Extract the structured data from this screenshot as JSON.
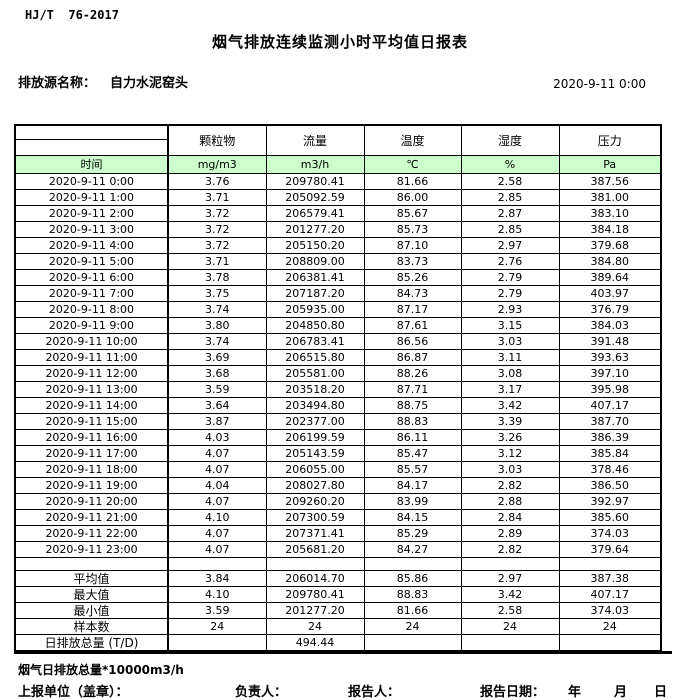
{
  "header": {
    "standard": "HJ/T  76-2017",
    "title": "烟气排放连续监测小时平均值日报表",
    "source_label": "排放源名称：",
    "source_name": "自力水泥窑头",
    "datetime": "2020-9-11 0:00"
  },
  "colors": {
    "header_green": "#ccffcc",
    "border": "#000000",
    "text": "#000000"
  },
  "table": {
    "time_header": "时间",
    "columns": [
      "颗粒物",
      "流量",
      "温度",
      "湿度",
      "压力"
    ],
    "units": [
      "mg/m3",
      "m3/h",
      "℃",
      "%",
      "Pa"
    ],
    "rows": [
      {
        "time": "2020-9-11 0:00",
        "values": [
          "3.76",
          "209780.41",
          "81.66",
          "2.58",
          "387.56"
        ]
      },
      {
        "time": "2020-9-11 1:00",
        "values": [
          "3.71",
          "205092.59",
          "86.00",
          "2.85",
          "381.00"
        ]
      },
      {
        "time": "2020-9-11 2:00",
        "values": [
          "3.72",
          "206579.41",
          "85.67",
          "2.87",
          "383.10"
        ]
      },
      {
        "time": "2020-9-11 3:00",
        "values": [
          "3.72",
          "201277.20",
          "85.73",
          "2.85",
          "384.18"
        ]
      },
      {
        "time": "2020-9-11 4:00",
        "values": [
          "3.72",
          "205150.20",
          "87.10",
          "2.97",
          "379.68"
        ]
      },
      {
        "time": "2020-9-11 5:00",
        "values": [
          "3.71",
          "208809.00",
          "83.73",
          "2.76",
          "384.80"
        ]
      },
      {
        "time": "2020-9-11 6:00",
        "values": [
          "3.78",
          "206381.41",
          "85.26",
          "2.79",
          "389.64"
        ]
      },
      {
        "time": "2020-9-11 7:00",
        "values": [
          "3.75",
          "207187.20",
          "84.73",
          "2.79",
          "403.97"
        ]
      },
      {
        "time": "2020-9-11 8:00",
        "values": [
          "3.74",
          "205935.00",
          "87.17",
          "2.93",
          "376.79"
        ]
      },
      {
        "time": "2020-9-11 9:00",
        "values": [
          "3.80",
          "204850.80",
          "87.61",
          "3.15",
          "384.03"
        ]
      },
      {
        "time": "2020-9-11 10:00",
        "values": [
          "3.74",
          "206783.41",
          "86.56",
          "3.03",
          "391.48"
        ]
      },
      {
        "time": "2020-9-11 11:00",
        "values": [
          "3.69",
          "206515.80",
          "86.87",
          "3.11",
          "393.63"
        ]
      },
      {
        "time": "2020-9-11 12:00",
        "values": [
          "3.68",
          "205581.00",
          "88.26",
          "3.08",
          "397.10"
        ]
      },
      {
        "time": "2020-9-11 13:00",
        "values": [
          "3.59",
          "203518.20",
          "87.71",
          "3.17",
          "395.98"
        ]
      },
      {
        "time": "2020-9-11 14:00",
        "values": [
          "3.64",
          "203494.80",
          "88.75",
          "3.42",
          "407.17"
        ]
      },
      {
        "time": "2020-9-11 15:00",
        "values": [
          "3.87",
          "202377.00",
          "88.83",
          "3.39",
          "387.70"
        ]
      },
      {
        "time": "2020-9-11 16:00",
        "values": [
          "4.03",
          "206199.59",
          "86.11",
          "3.26",
          "386.39"
        ]
      },
      {
        "time": "2020-9-11 17:00",
        "values": [
          "4.07",
          "205143.59",
          "85.47",
          "3.12",
          "385.84"
        ]
      },
      {
        "time": "2020-9-11 18:00",
        "values": [
          "4.07",
          "206055.00",
          "85.57",
          "3.03",
          "378.46"
        ]
      },
      {
        "time": "2020-9-11 19:00",
        "values": [
          "4.04",
          "208027.80",
          "84.17",
          "2.82",
          "386.50"
        ]
      },
      {
        "time": "2020-9-11 20:00",
        "values": [
          "4.07",
          "209260.20",
          "83.99",
          "2.88",
          "392.97"
        ]
      },
      {
        "time": "2020-9-11 21:00",
        "values": [
          "4.10",
          "207300.59",
          "84.15",
          "2.84",
          "385.60"
        ]
      },
      {
        "time": "2020-9-11 22:00",
        "values": [
          "4.07",
          "207371.41",
          "85.29",
          "2.89",
          "374.03"
        ]
      },
      {
        "time": "2020-9-11 23:00",
        "values": [
          "4.07",
          "205681.20",
          "84.27",
          "2.82",
          "379.64"
        ]
      }
    ],
    "summary": [
      {
        "label": "平均值",
        "values": [
          "3.84",
          "206014.70",
          "85.86",
          "2.97",
          "387.38"
        ]
      },
      {
        "label": "最大值",
        "values": [
          "4.10",
          "209780.41",
          "88.83",
          "3.42",
          "407.17"
        ]
      },
      {
        "label": "最小值",
        "values": [
          "3.59",
          "201277.20",
          "81.66",
          "2.58",
          "374.03"
        ]
      },
      {
        "label": "样本数",
        "values": [
          "24",
          "24",
          "24",
          "24",
          "24"
        ]
      },
      {
        "label": "日排放总量 (T/D)",
        "values": [
          "",
          "494.44",
          "",
          "",
          ""
        ]
      }
    ]
  },
  "footer": {
    "note": "烟气日排放总量*10000m3/h",
    "report_unit_label": "上报单位（盖章）：",
    "responsible_label": "负责人：",
    "reporter_label": "报告人：",
    "report_date_label": "报告日期：",
    "year_label": "年",
    "month_label": "月",
    "day_label": "日"
  }
}
